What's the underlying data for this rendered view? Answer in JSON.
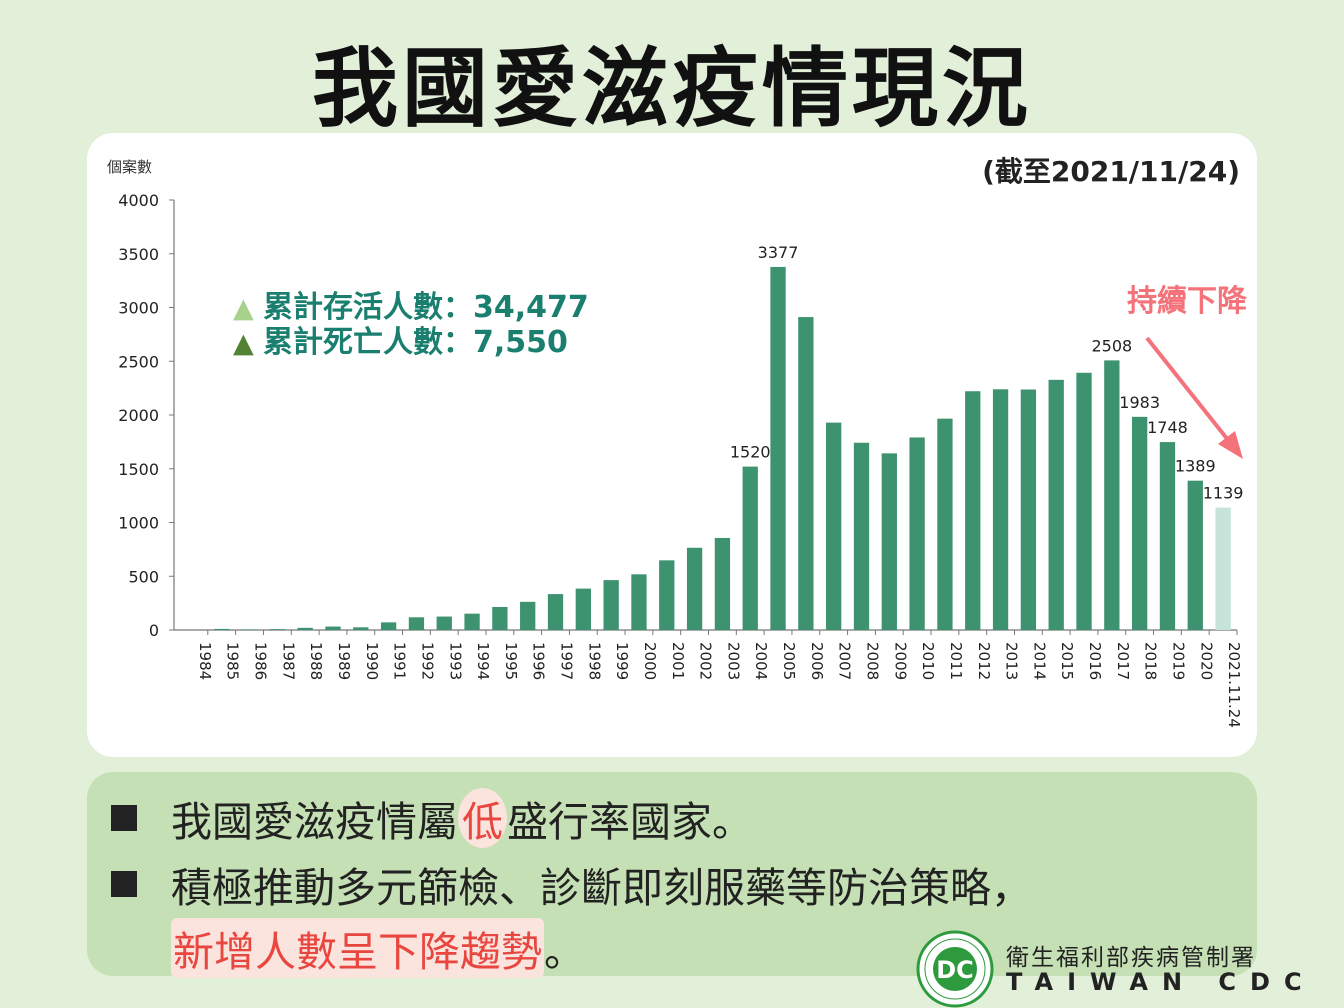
{
  "title": "我國愛滋疫情現況",
  "chart_data": {
    "type": "bar",
    "ylabel": "個案數",
    "as_of": "(截至2021/11/24)",
    "ylim": [
      0,
      4000
    ],
    "yticks": [
      "0",
      "500",
      "1000",
      "1500",
      "2000",
      "2500",
      "3000",
      "3500",
      "4000"
    ],
    "categories": [
      "1984",
      "1985",
      "1986",
      "1987",
      "1988",
      "1989",
      "1990",
      "1991",
      "1992",
      "1993",
      "1994",
      "1995",
      "1996",
      "1997",
      "1998",
      "1999",
      "2000",
      "2001",
      "2002",
      "2003",
      "2004",
      "2005",
      "2006",
      "2007",
      "2008",
      "2009",
      "2010",
      "2011",
      "2012",
      "2013",
      "2014",
      "2015",
      "2016",
      "2017",
      "2018",
      "2019",
      "2020",
      "2021.11.24"
    ],
    "values": [
      2,
      10,
      5,
      8,
      20,
      32,
      25,
      71,
      118,
      125,
      152,
      214,
      262,
      334,
      385,
      464,
      518,
      648,
      765,
      856,
      1520,
      3377,
      2911,
      1929,
      1742,
      1643,
      1791,
      1966,
      2221,
      2239,
      2237,
      2327,
      2393,
      2508,
      1983,
      1748,
      1389,
      1139
    ],
    "data_labels": [
      {
        "index": 20,
        "text": "1520"
      },
      {
        "index": 21,
        "text": "3377"
      },
      {
        "index": 33,
        "text": "2508"
      },
      {
        "index": 34,
        "text": "1983"
      },
      {
        "index": 35,
        "text": "1748"
      },
      {
        "index": 36,
        "text": "1389"
      },
      {
        "index": 37,
        "text": "1139"
      }
    ],
    "bar_color": "#3d9270",
    "last_bar_color": "#c6e4d9",
    "legend": [
      {
        "marker": "▲",
        "text": "累計存活人數：34,477",
        "color": "#a9d18e"
      },
      {
        "marker": "▲",
        "text": "累計死亡人數：7,550",
        "color": "#548235"
      }
    ],
    "legend_text_color": "#1a7f6e",
    "annotation": {
      "text": "持續下降",
      "color": "#f4737a"
    }
  },
  "bullets": [
    {
      "before": "我國愛滋疫情屬",
      "highlight": "低",
      "after": "盛行率國家。"
    },
    {
      "line1": "積極推動多元篩檢、診斷即刻服藥等防治策略，",
      "highlight": "新增人數呈下降趨勢",
      "after": "。"
    }
  ],
  "org": {
    "name": "衛生福利部疾病管制署",
    "name_en": "TAIWAN CDC",
    "logo_text": "DC",
    "logo_ring_text": "衛生福利部疾病管制署 Centers for Disease Control"
  },
  "colors": {
    "highlight_text": "#e8463f",
    "highlight_bg": "#fbe3de",
    "logo_green": "#2e9a3e"
  }
}
